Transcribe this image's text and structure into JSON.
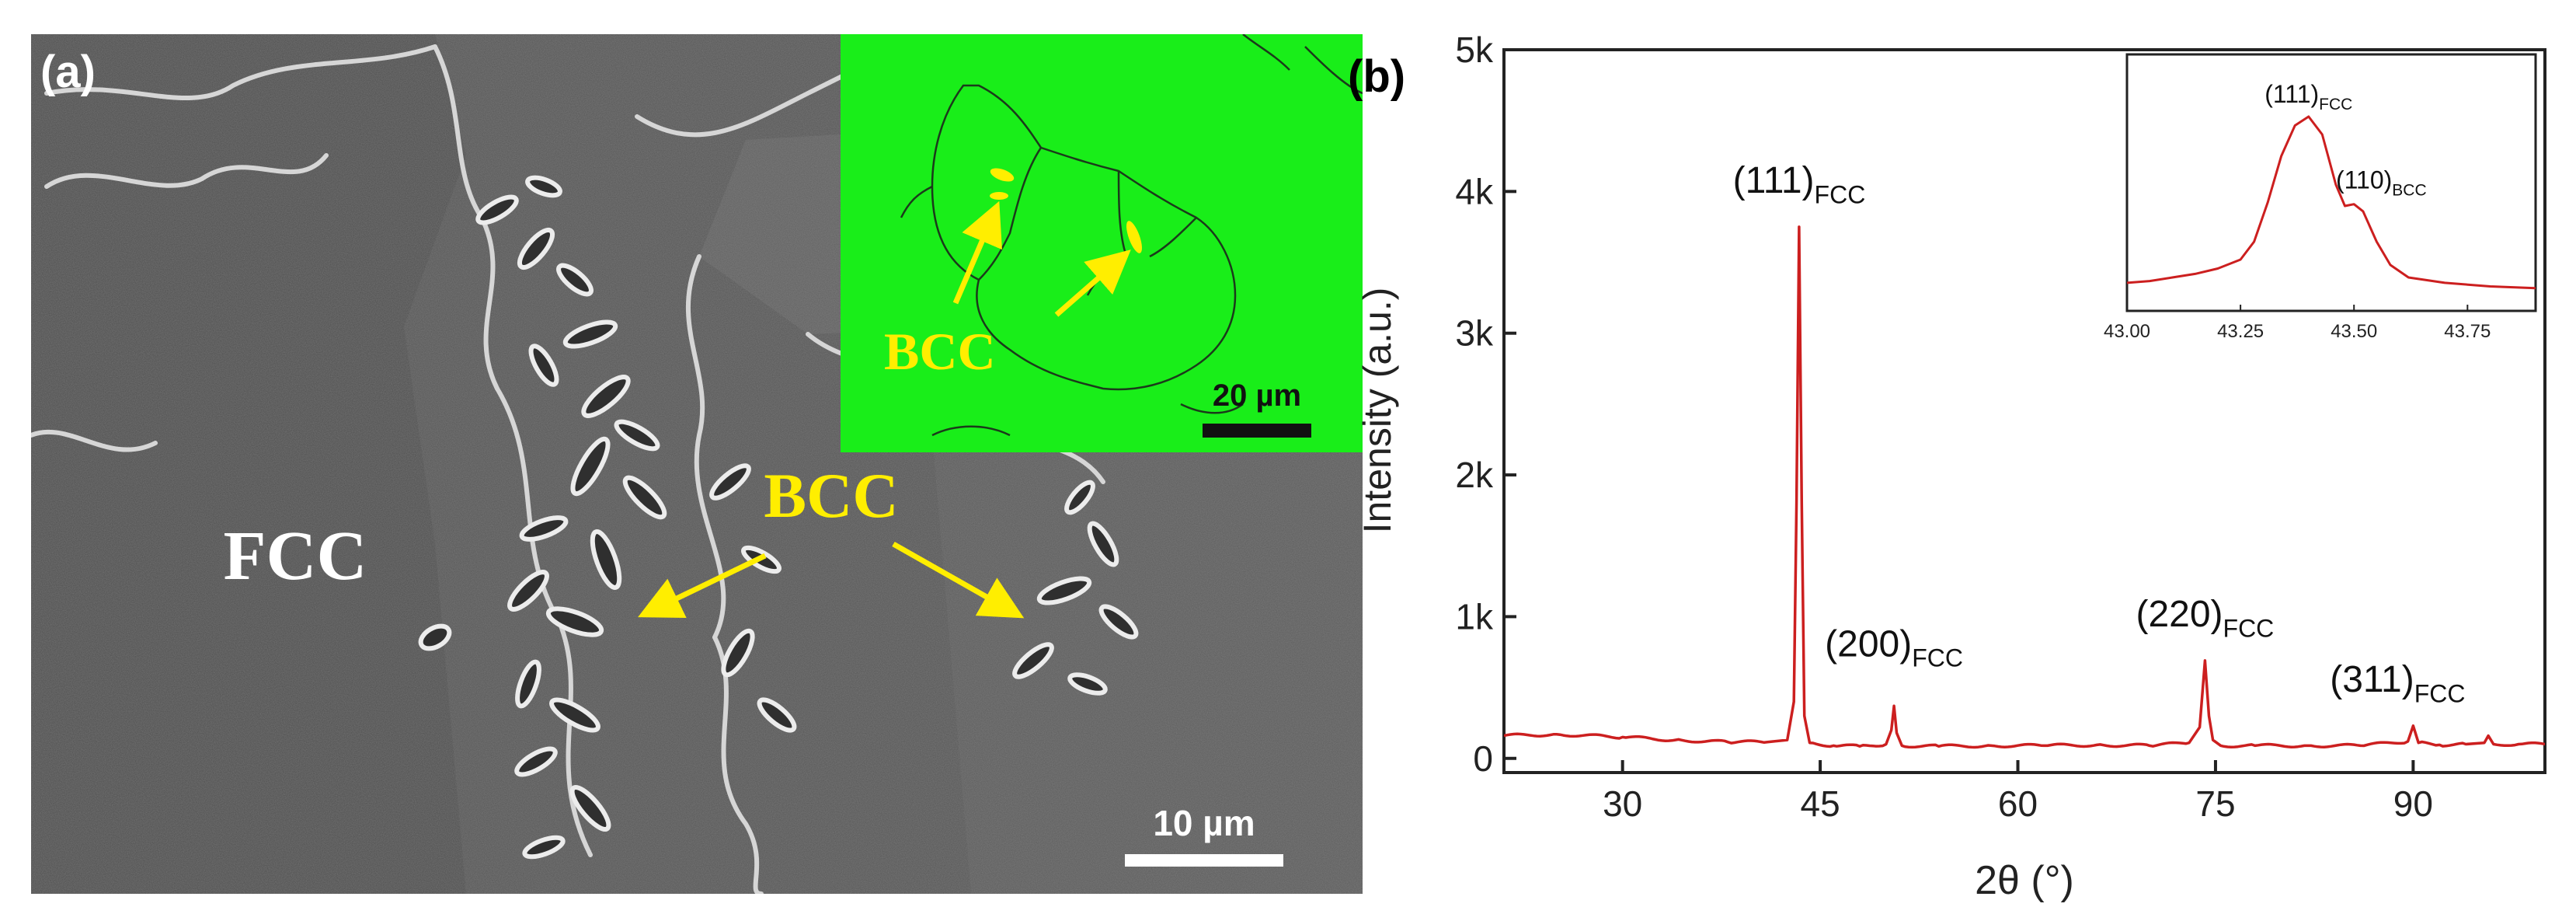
{
  "panel_a": {
    "label": "(a)",
    "phase_fcc": "FCC",
    "phase_bcc": "BCC",
    "scalebar": "10 µm",
    "inset": {
      "phase_bcc": "BCC",
      "scalebar": "20 µm",
      "background_color": "#19ee19"
    },
    "arrow_color": "#ffee00"
  },
  "panel_b": {
    "label": "(b)",
    "line_color": "#cc1f1f",
    "peak_labels": [
      {
        "base": "(111)",
        "sub": "FCC"
      },
      {
        "base": "(200)",
        "sub": "FCC"
      },
      {
        "base": "(220)",
        "sub": "FCC"
      },
      {
        "base": "(311)",
        "sub": "FCC"
      }
    ],
    "inset_peak_labels": [
      {
        "base": "(111)",
        "sub": "FCC"
      },
      {
        "base": "(110)",
        "sub": "BCC"
      }
    ]
  },
  "chart_data": [
    {
      "type": "line",
      "xlabel": "2θ (°)",
      "ylabel": "Intensity (a.u.)",
      "xlim": [
        21,
        100
      ],
      "ylim": [
        -100,
        5000
      ],
      "x_ticks": [
        30,
        45,
        60,
        75,
        90
      ],
      "x_tick_labels": [
        "30",
        "45",
        "60",
        "75",
        "90"
      ],
      "y_ticks": [
        0,
        1000,
        2000,
        3000,
        4000,
        5000
      ],
      "y_tick_labels": [
        "0",
        "1k",
        "2k",
        "3k",
        "4k",
        "5k"
      ],
      "series": [
        {
          "x": [
            21,
            25,
            30,
            34,
            38,
            41,
            42.5,
            43.0,
            43.2,
            43.4,
            43.6,
            43.8,
            44.2,
            46,
            48,
            50,
            50.4,
            50.6,
            50.8,
            51.2,
            54,
            58,
            62,
            66,
            70,
            73,
            73.8,
            74.2,
            74.5,
            74.8,
            75.4,
            78,
            82,
            86,
            89.6,
            90.0,
            90.4,
            92,
            94,
            95.4,
            95.7,
            96.1,
            98,
            100
          ],
          "y": [
            160,
            170,
            150,
            130,
            115,
            115,
            130,
            400,
            1800,
            3750,
            1800,
            300,
            110,
            90,
            85,
            100,
            200,
            370,
            180,
            90,
            85,
            90,
            90,
            95,
            90,
            110,
            220,
            690,
            300,
            130,
            90,
            90,
            90,
            90,
            120,
            230,
            110,
            95,
            100,
            110,
            160,
            100,
            100,
            100
          ]
        }
      ],
      "annotations": [
        "(111)FCC",
        "(200)FCC",
        "(220)FCC",
        "(311)FCC"
      ]
    },
    {
      "type": "line",
      "xlim": [
        43.0,
        43.9
      ],
      "x_ticks": [
        43.0,
        43.25,
        43.5,
        43.75
      ],
      "x_tick_labels": [
        "43.00",
        "43.25",
        "43.50",
        "43.75"
      ],
      "series": [
        {
          "x": [
            43.0,
            43.05,
            43.1,
            43.15,
            43.2,
            43.25,
            43.28,
            43.31,
            43.34,
            43.37,
            43.4,
            43.43,
            43.46,
            43.48,
            43.5,
            43.52,
            43.55,
            43.58,
            43.62,
            43.7,
            43.8,
            43.9
          ],
          "y": [
            0.07,
            0.08,
            0.1,
            0.12,
            0.15,
            0.2,
            0.3,
            0.52,
            0.78,
            0.95,
            1.0,
            0.9,
            0.62,
            0.5,
            0.51,
            0.47,
            0.3,
            0.17,
            0.1,
            0.07,
            0.05,
            0.04
          ]
        }
      ],
      "annotations": [
        "(111)FCC",
        "(110)BCC"
      ]
    }
  ]
}
